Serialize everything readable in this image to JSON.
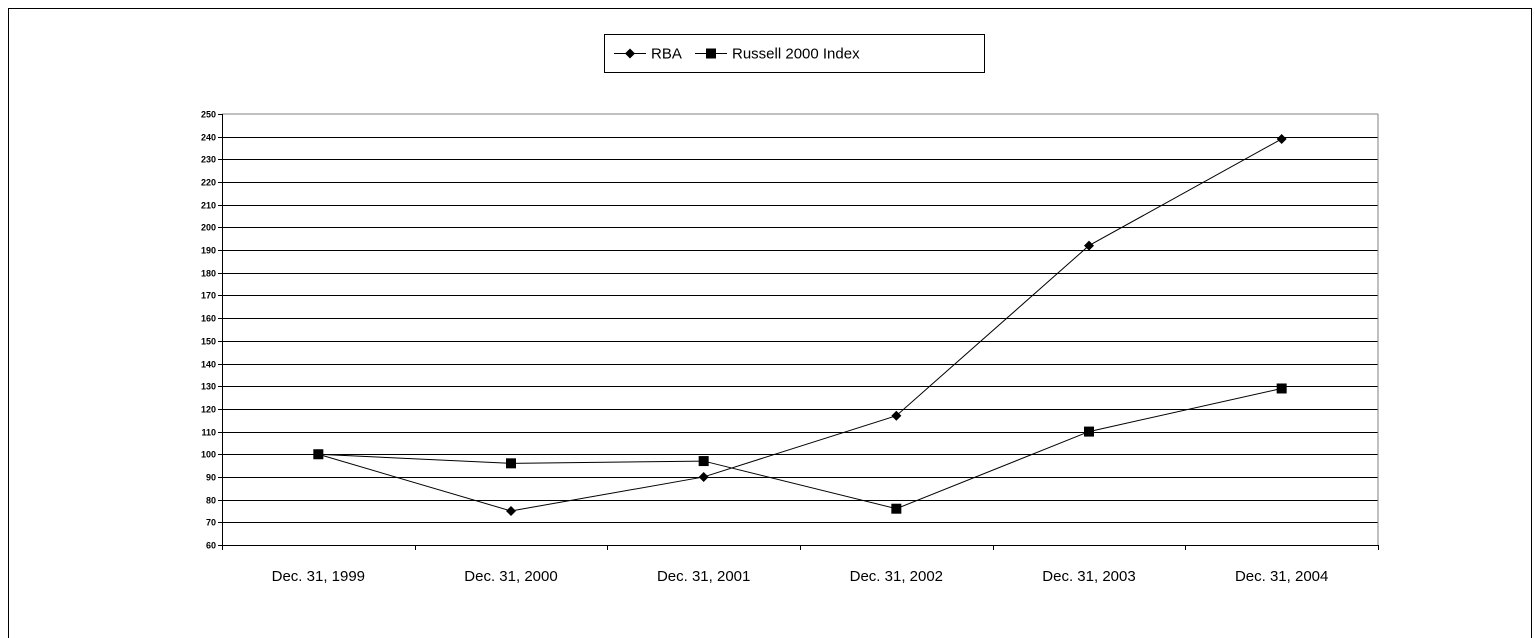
{
  "chart_data": {
    "type": "line",
    "categories": [
      "Dec. 31, 1999",
      "Dec. 31, 2000",
      "Dec. 31, 2001",
      "Dec. 31, 2002",
      "Dec. 31, 2003",
      "Dec. 31, 2004"
    ],
    "series": [
      {
        "name": "RBA",
        "marker": "diamond",
        "values": [
          100,
          75,
          90,
          117,
          192,
          239
        ]
      },
      {
        "name": "Russell 2000 Index",
        "marker": "square",
        "values": [
          100,
          96,
          97,
          76,
          110,
          129
        ]
      }
    ],
    "ylim": [
      60,
      250
    ],
    "ytick_step": 10,
    "grid": true,
    "legend_position": "top-center",
    "line_color": "#000000",
    "background_color": "#ffffff"
  }
}
